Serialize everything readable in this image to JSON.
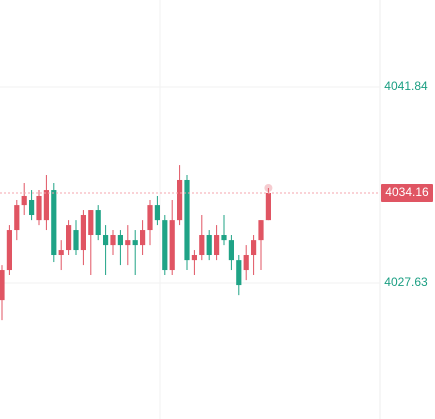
{
  "chart_data": {
    "type": "candlestick",
    "up_color": "#e05563",
    "down_color": "#1fa386",
    "ylim": [
      4017.77,
      4048.15
    ],
    "yticks": [
      4027.63,
      4041.84
    ],
    "grid": true,
    "last_price": 4034.16,
    "open": [
      4026.39,
      4028.57,
      4031.47,
      4033.28,
      4033.65,
      4032.19,
      4032.19,
      4034.37,
      4029.66,
      4030.02,
      4031.47,
      4030.02,
      4031.11,
      4032.92,
      4031.11,
      4030.38,
      4031.11,
      4030.38,
      4030.74,
      4030.38,
      4031.47,
      4033.28,
      4032.19,
      4028.57,
      4032.19,
      4035.1,
      4029.29,
      4029.66,
      4031.11,
      4029.66,
      4031.11,
      4030.74,
      4029.29,
      4028.57,
      4029.66,
      4030.74,
      4032.19
    ],
    "high": [
      4028.93,
      4031.83,
      4033.65,
      4034.88,
      4034.37,
      4034.37,
      4035.46,
      4034.88,
      4030.74,
      4032.19,
      4032.19,
      4032.92,
      4032.92,
      4033.28,
      4031.83,
      4031.47,
      4031.47,
      4031.83,
      4031.47,
      4032.19,
      4033.65,
      4033.94,
      4032.56,
      4033.65,
      4036.18,
      4035.46,
      4030.02,
      4032.56,
      4031.47,
      4031.83,
      4032.56,
      4031.11,
      4029.66,
      4030.38,
      4031.11,
      4032.19,
      4034.52
    ],
    "low": [
      4024.94,
      4028.21,
      4030.74,
      4032.56,
      4032.19,
      4031.83,
      4031.47,
      4029.15,
      4028.57,
      4029.66,
      4029.66,
      4028.93,
      4028.21,
      4030.74,
      4028.21,
      4029.66,
      4028.93,
      4028.93,
      4028.21,
      4029.66,
      4030.38,
      4031.83,
      4028.21,
      4028.21,
      4031.83,
      4028.57,
      4028.21,
      4029.29,
      4029.29,
      4029.29,
      4030.38,
      4028.57,
      4026.75,
      4027.84,
      4028.21,
      4028.57,
      4032.19
    ],
    "close": [
      4028.57,
      4031.47,
      4033.28,
      4033.94,
      4032.56,
      4033.94,
      4034.37,
      4029.66,
      4030.02,
      4031.83,
      4030.02,
      4032.56,
      4032.92,
      4031.11,
      4030.38,
      4031.11,
      4030.38,
      4030.74,
      4030.38,
      4031.47,
      4033.28,
      4032.19,
      4028.57,
      4032.19,
      4035.1,
      4029.29,
      4029.66,
      4031.11,
      4029.66,
      4031.11,
      4030.74,
      4029.29,
      4027.48,
      4029.66,
      4030.74,
      4032.19,
      4034.16
    ]
  }
}
